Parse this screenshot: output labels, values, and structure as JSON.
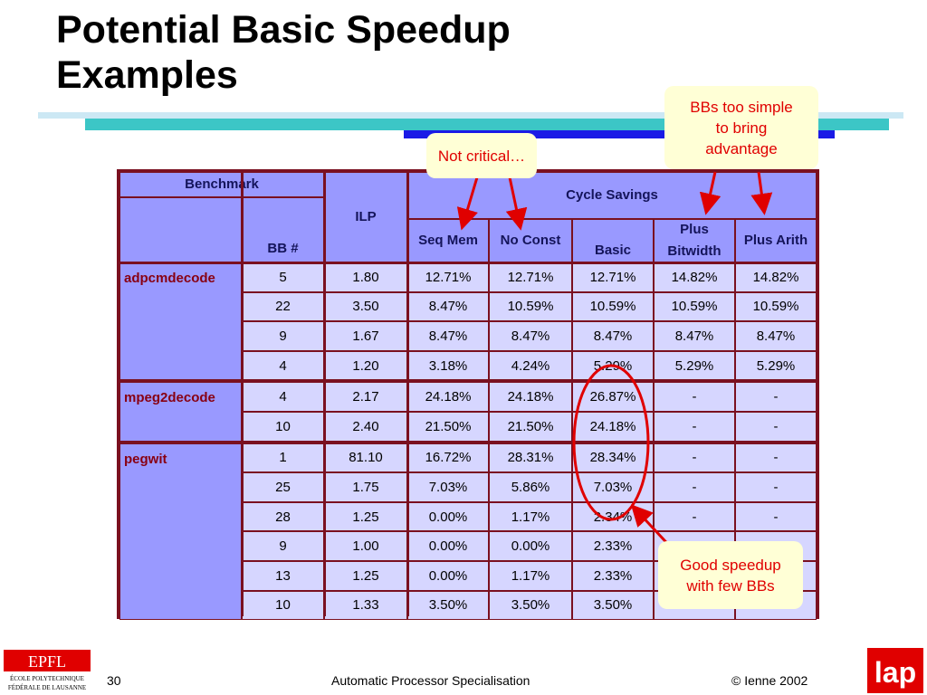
{
  "title_line1": "Potential Basic Speedup",
  "title_line2": "Examples",
  "table": {
    "header": {
      "benchmark": "Benchmark",
      "bb": "BB #",
      "ilp": "ILP",
      "cycle_savings": "Cycle Savings",
      "cols": [
        "Seq Mem",
        "No Const",
        "Basic",
        "Plus Bitwidth",
        "Plus Arith"
      ]
    },
    "groups": [
      {
        "name": "adpcmdecode",
        "rows": [
          [
            "5",
            "1.80",
            "12.71%",
            "12.71%",
            "12.71%",
            "14.82%",
            "14.82%"
          ],
          [
            "22",
            "3.50",
            "8.47%",
            "10.59%",
            "10.59%",
            "10.59%",
            "10.59%"
          ],
          [
            "9",
            "1.67",
            "8.47%",
            "8.47%",
            "8.47%",
            "8.47%",
            "8.47%"
          ],
          [
            "4",
            "1.20",
            "3.18%",
            "4.24%",
            "5.29%",
            "5.29%",
            "5.29%"
          ]
        ]
      },
      {
        "name": "mpeg2decode",
        "rows": [
          [
            "4",
            "2.17",
            "24.18%",
            "24.18%",
            "26.87%",
            "-",
            "-"
          ],
          [
            "10",
            "2.40",
            "21.50%",
            "21.50%",
            "24.18%",
            "-",
            "-"
          ]
        ]
      },
      {
        "name": "pegwit",
        "rows": [
          [
            "1",
            "81.10",
            "16.72%",
            "28.31%",
            "28.34%",
            "-",
            "-"
          ],
          [
            "25",
            "1.75",
            "7.03%",
            "5.86%",
            "7.03%",
            "-",
            "-"
          ],
          [
            "28",
            "1.25",
            "0.00%",
            "1.17%",
            "2.34%",
            "-",
            "-"
          ],
          [
            "9",
            "1.00",
            "0.00%",
            "0.00%",
            "2.33%",
            "",
            ""
          ],
          [
            "13",
            "1.25",
            "0.00%",
            "1.17%",
            "2.33%",
            "",
            ""
          ],
          [
            "10",
            "1.33",
            "3.50%",
            "3.50%",
            "3.50%",
            "",
            ""
          ]
        ]
      }
    ]
  },
  "callouts": {
    "not_critical": "Not critical…",
    "bbs_simple": [
      "BBs too simple",
      "to bring",
      "advantage"
    ],
    "good_speedup": [
      "Good speedup",
      "with few BBs"
    ]
  },
  "colors": {
    "annotation": "#e00000",
    "header_fill": "#9999ff",
    "data_fill": "#d6d6ff",
    "border": "#7a1020"
  },
  "footer": {
    "page": "30",
    "center": "Automatic Processor Specialisation",
    "copyright": "© Ienne 2002"
  },
  "logos": {
    "epfl_mark": "EPFL",
    "epfl_line1": "ÉCOLE POLYTECHNIQUE",
    "epfl_line2": "FÉDÉRALE DE LAUSANNE",
    "lap": "lap"
  }
}
